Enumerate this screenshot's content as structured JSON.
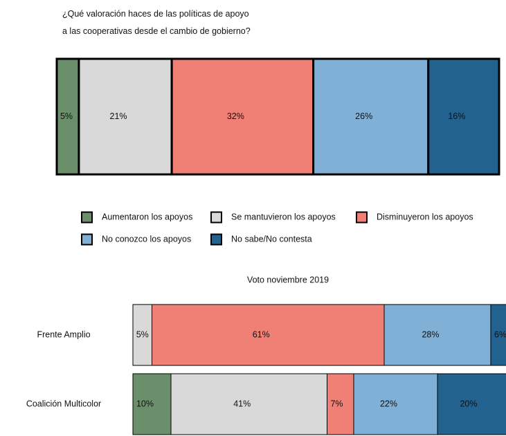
{
  "chart_data": [
    {
      "type": "bar",
      "orientation": "horizontal",
      "stacked": true,
      "title": "¿Qué valoración haces de las políticas de apoyo\na las cooperativas desde el cambio de gobierno?",
      "categories": [
        null
      ],
      "xlim": [
        0,
        100
      ],
      "legend": "bottom",
      "series": [
        {
          "name": "Aumentaron los apoyos",
          "color": "#6a8f6a",
          "values": [
            5
          ],
          "value_labels": [
            "5%"
          ]
        },
        {
          "name": "Se mantuvieron los apoyos",
          "color": "#d9d9d9",
          "values": [
            21
          ],
          "value_labels": [
            "21%"
          ]
        },
        {
          "name": "Disminuyeron los apoyos",
          "color": "#f08075",
          "values": [
            32
          ],
          "value_labels": [
            "32%"
          ]
        },
        {
          "name": "No conozco los apoyos",
          "color": "#80b0d6",
          "values": [
            26
          ],
          "value_labels": [
            "26%"
          ]
        },
        {
          "name": "No sabe/No contesta",
          "color": "#23628f",
          "values": [
            16
          ],
          "value_labels": [
            "16%"
          ]
        }
      ]
    },
    {
      "type": "bar",
      "orientation": "horizontal",
      "stacked": true,
      "title": "Voto noviembre 2019",
      "categories": [
        "Frente Amplio",
        "Coalición Multicolor"
      ],
      "xlim": [
        0,
        100
      ],
      "series": [
        {
          "color": "#6a8f6a",
          "values": [
            null,
            10
          ],
          "value_labels": [
            null,
            "10%"
          ]
        },
        {
          "color": "#d9d9d9",
          "values": [
            5,
            41
          ],
          "value_labels": [
            "5%",
            "41%"
          ]
        },
        {
          "color": "#f08075",
          "values": [
            61,
            7
          ],
          "value_labels": [
            "61%",
            "7%"
          ]
        },
        {
          "color": "#80b0d6",
          "values": [
            28,
            22
          ],
          "value_labels": [
            "28%",
            "22%"
          ]
        },
        {
          "color": "#23628f",
          "values": [
            6,
            20
          ],
          "value_labels": [
            "6%",
            "20%"
          ]
        }
      ]
    }
  ]
}
